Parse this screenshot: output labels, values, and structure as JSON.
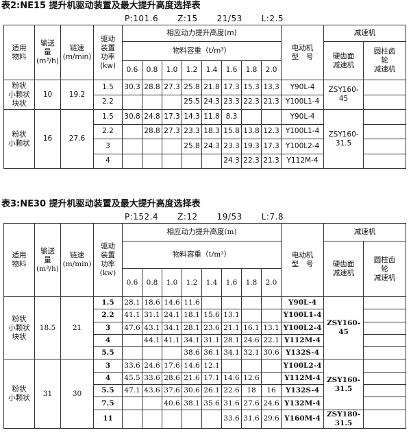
{
  "tables": [
    {
      "title": "表2:NE15 提升机驱动装置及最大提升高度选择表",
      "params": [
        "P:101.6",
        "Z:15",
        "21/53",
        "L:2.5"
      ],
      "header": {
        "material": [
          "适用",
          "物料"
        ],
        "capacity": [
          "输送",
          "量",
          "(m³/h)"
        ],
        "speed": [
          "链速",
          "(m/min)"
        ],
        "power": [
          "驱动",
          "装置",
          "功率",
          "(kw)"
        ],
        "height": "相应动力提升高度(m)",
        "density": "物料容重（t/m³）",
        "motor": [
          "电动机",
          "型　号"
        ],
        "reducer": "减速机",
        "hard": [
          "硬齿面",
          "减速机"
        ],
        "cylinder": [
          "圆柱齿",
          "轮",
          "减速机"
        ]
      },
      "densities": [
        "0.6",
        "0.8",
        "1.0",
        "1.2",
        "1.4",
        "1.6",
        "1.8",
        "2.0"
      ],
      "groups": [
        {
          "material": [
            "粉状",
            "小颗状",
            "块状"
          ],
          "capacity": 10,
          "speed": 19.2,
          "rows": [
            {
              "power": 1.5,
              "heights": [
                30.3,
                28.8,
                27.3,
                25.8,
                21.8,
                17.3,
                15.3,
                13.3
              ],
              "motor": "Y90L-4",
              "reducer": "ZSY160-45"
            },
            {
              "power": 2.2,
              "heights": [
                null,
                null,
                null,
                25.5,
                24.3,
                23.3,
                22.3,
                21.3
              ],
              "motor": "Y100L1-4",
              "reducer": null
            }
          ]
        },
        {
          "material": [
            "粉状",
            "小颗状"
          ],
          "capacity": 16,
          "speed": 27.6,
          "rows": [
            {
              "power": 1.5,
              "heights": [
                30.8,
                24.8,
                17.3,
                14.3,
                11.8,
                8.3,
                null,
                null
              ],
              "motor": "Y90L-4",
              "reducer": "ZSY160-31.5"
            },
            {
              "power": 2.2,
              "heights": [
                null,
                28.8,
                27.3,
                23.3,
                18.3,
                15.8,
                13.8,
                12.3
              ],
              "motor": "Y100L1-4",
              "reducer": null
            },
            {
              "power": 3,
              "heights": [
                null,
                null,
                null,
                25.8,
                24.3,
                23.3,
                19.3,
                17.3
              ],
              "motor": "Y100L2-4",
              "reducer": null
            },
            {
              "power": 4,
              "heights": [
                null,
                null,
                null,
                null,
                null,
                24.3,
                22.3,
                21.3
              ],
              "motor": "Y112M-4",
              "reducer": null
            }
          ]
        }
      ]
    },
    {
      "title": "表3:NE30 提升机驱动装置及最大提升高度选择表",
      "params": [
        "P:152.4",
        "Z:12",
        "19/53",
        "L:7.8"
      ],
      "header": {
        "material": [
          "适用",
          "物料"
        ],
        "capacity": [
          "输送",
          "量",
          "(m³/h)"
        ],
        "speed": [
          "链速",
          "(m/min)"
        ],
        "power": [
          "驱动",
          "装置",
          "功率",
          "(kw)"
        ],
        "height": "相应动力提升高度(m)",
        "density": "物料容重（t/m³）",
        "motor": [
          "电动机",
          "型　号"
        ],
        "reducer": "减速机",
        "hard": [
          "硬齿面",
          "减速机"
        ],
        "cylinder": [
          "圆柱齿",
          "轮",
          "减速机"
        ]
      },
      "densities": [
        "0.6",
        "0.8",
        "1.0",
        "1.2",
        "1.4",
        "1.6",
        "1.8",
        "2.0"
      ],
      "groups": [
        {
          "material": [
            "粉状",
            "小颗状",
            "块状"
          ],
          "capacity": 18.5,
          "speed": 21,
          "rows": [
            {
              "power": 1.5,
              "heights": [
                28.1,
                18.6,
                14.6,
                11.6,
                null,
                null,
                null,
                null
              ],
              "motor": "Y90L-4",
              "reducer": "ZSY160-45"
            },
            {
              "power": 2.2,
              "heights": [
                41.1,
                31.1,
                24.1,
                18.1,
                15.6,
                13.1,
                null,
                null
              ],
              "motor": "Y100L1-4",
              "reducer": null
            },
            {
              "power": 3,
              "heights": [
                47.6,
                43.1,
                34.1,
                28.1,
                23.6,
                21.1,
                16.1,
                13.1
              ],
              "motor": "Y100L2-4",
              "reducer": null
            },
            {
              "power": 4,
              "heights": [
                null,
                44.1,
                41.1,
                34.1,
                31.1,
                28.1,
                24.6,
                22.1
              ],
              "motor": "Y112M-4",
              "reducer": null
            },
            {
              "power": 5.5,
              "heights": [
                null,
                null,
                null,
                38.6,
                36.1,
                34.1,
                32.1,
                30.6
              ],
              "motor": "Y132S-4",
              "reducer": null
            }
          ]
        },
        {
          "material": [
            "粉状",
            "小颗状"
          ],
          "capacity": 31,
          "speed": 30,
          "rows": [
            {
              "power": 3,
              "heights": [
                33.6,
                24.6,
                17.6,
                14.6,
                12.1,
                null,
                null,
                null
              ],
              "motor": "Y100L2-4",
              "reducer": "ZSY160-31.5"
            },
            {
              "power": 4,
              "heights": [
                45.5,
                33.6,
                28.6,
                21.6,
                17.1,
                14.6,
                12.6,
                null
              ],
              "motor": "Y112M-4",
              "reducer": null
            },
            {
              "power": 5.5,
              "heights": [
                47.1,
                43.6,
                37.6,
                30.6,
                26.1,
                22.6,
                18,
                16
              ],
              "motor": "Y132S-4",
              "reducer": null
            },
            {
              "power": 7.5,
              "heights": [
                null,
                null,
                40.6,
                38.1,
                35.6,
                31.6,
                27.6,
                24.6
              ],
              "motor": "Y132M-4",
              "reducer": null
            },
            {
              "power": 11,
              "heights": [
                null,
                null,
                null,
                null,
                null,
                33.6,
                31.6,
                29.6
              ],
              "motor": "Y160M-4",
              "reducer": "ZSY180-31.5"
            }
          ]
        }
      ]
    }
  ]
}
